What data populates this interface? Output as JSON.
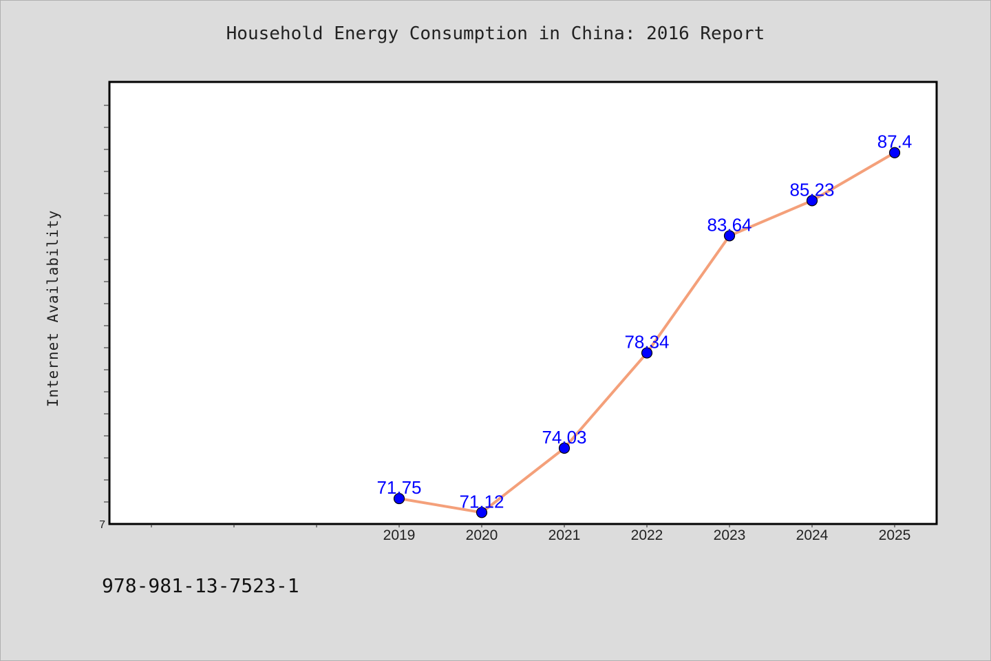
{
  "header": {
    "title": "Household Energy Consumption in China: 2016 Report"
  },
  "footer": {
    "isbn": "978-981-13-7523-1"
  },
  "colors": {
    "background": "#dcdcdc",
    "plot_background": "#ffffff",
    "line": "#f4a07a",
    "marker": "#0000ff",
    "data_label": "#0000ff"
  },
  "chart_data": {
    "type": "line",
    "title": "Household Energy Consumption in China: 2016 Report",
    "xlabel": "",
    "ylabel": "Internet Availability",
    "x": [
      "2019",
      "2020",
      "2021",
      "2022",
      "2023",
      "2024",
      "2025"
    ],
    "x_axis_categories": [
      "",
      "",
      "",
      "2019",
      "2020",
      "2021",
      "2022",
      "2023",
      "2024",
      "2025"
    ],
    "series": [
      {
        "values": [
          71.75,
          71.12,
          74.03,
          78.34,
          83.64,
          85.23,
          87.4
        ]
      }
    ],
    "data_labels": [
      "71.75",
      "71.12",
      "74.03",
      "78.34",
      "83.64",
      "85.23",
      "87.4"
    ],
    "ylim": [
      70.6,
      90.6
    ],
    "y_min_label": "7",
    "grid": false,
    "legend": "none"
  }
}
